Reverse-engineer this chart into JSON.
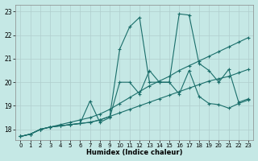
{
  "background_color": "#c5e8e5",
  "grid_color": "#b0cece",
  "line_color": "#1a6e6a",
  "xlabel": "Humidex (Indice chaleur)",
  "xlim": [
    -0.5,
    23.5
  ],
  "ylim": [
    17.55,
    23.3
  ],
  "xticks": [
    0,
    1,
    2,
    3,
    4,
    5,
    6,
    7,
    8,
    9,
    10,
    11,
    12,
    13,
    14,
    15,
    16,
    17,
    18,
    19,
    20,
    21,
    22,
    23
  ],
  "yticks": [
    18,
    19,
    20,
    21,
    22,
    23
  ],
  "series": [
    {
      "x": [
        0,
        1,
        2,
        3,
        4,
        5,
        6,
        7,
        8,
        9,
        10,
        11,
        12,
        13,
        14,
        15,
        16,
        17,
        18,
        19,
        20,
        21,
        22,
        23
      ],
      "y": [
        17.7,
        17.8,
        18.0,
        18.1,
        18.15,
        18.2,
        18.25,
        18.3,
        18.4,
        18.55,
        18.7,
        18.85,
        19.0,
        19.15,
        19.3,
        19.45,
        19.6,
        19.75,
        19.9,
        20.05,
        20.15,
        20.25,
        20.4,
        20.55
      ]
    },
    {
      "x": [
        0,
        1,
        2,
        3,
        4,
        5,
        6,
        7,
        8,
        9,
        10,
        11,
        12,
        13,
        14,
        15,
        16,
        17,
        18,
        19,
        20,
        21,
        22,
        23
      ],
      "y": [
        17.7,
        17.8,
        18.0,
        18.1,
        18.2,
        18.3,
        18.4,
        18.5,
        18.65,
        18.85,
        19.1,
        19.35,
        19.6,
        19.85,
        20.05,
        20.25,
        20.5,
        20.7,
        20.9,
        21.1,
        21.3,
        21.5,
        21.7,
        21.9
      ]
    },
    {
      "x": [
        0,
        1,
        2,
        3,
        4,
        5,
        6,
        7,
        8,
        9,
        10,
        11,
        12,
        13,
        14,
        15,
        16,
        17,
        18,
        19,
        20,
        21,
        22,
        23
      ],
      "y": [
        17.7,
        17.8,
        18.0,
        18.1,
        18.15,
        18.2,
        18.25,
        19.2,
        18.3,
        18.5,
        20.0,
        20.0,
        19.5,
        20.5,
        20.0,
        20.0,
        19.5,
        20.5,
        19.4,
        19.1,
        19.05,
        18.9,
        19.1,
        19.25
      ]
    },
    {
      "x": [
        0,
        1,
        2,
        3,
        4,
        5,
        6,
        7,
        8,
        9,
        10,
        11,
        12,
        13,
        14,
        15,
        16,
        17,
        18,
        19,
        20,
        21,
        22,
        23
      ],
      "y": [
        17.7,
        17.8,
        18.0,
        18.1,
        18.15,
        18.2,
        18.25,
        18.3,
        18.4,
        18.55,
        21.4,
        22.35,
        22.75,
        20.0,
        20.0,
        20.0,
        22.9,
        22.85,
        20.8,
        20.5,
        20.0,
        20.55,
        19.15,
        19.3
      ]
    }
  ]
}
